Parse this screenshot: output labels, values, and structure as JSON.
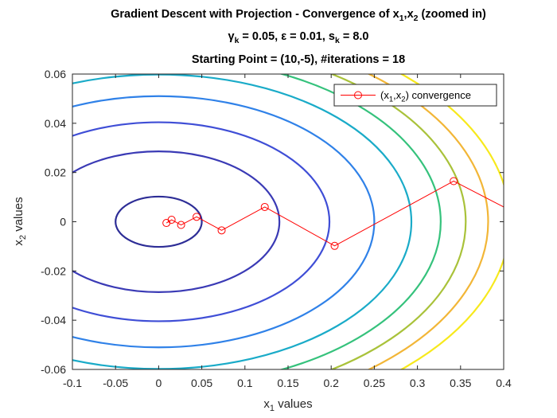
{
  "chart_data": {
    "type": "line",
    "title_lines": [
      {
        "text": "Gradient Descent with Projection - Convergence of x",
        "sub1": "1",
        "mid": ",x",
        "sub2": "2",
        "tail": " (zoomed in)"
      },
      {
        "p1": "γ",
        "s1": "k",
        "p2": " = 0.05,  ε = 0.01, s",
        "s2": "k",
        "p3": " = 8.0"
      },
      {
        "text": "Starting Point = (10,-5),  #iterations = 18"
      }
    ],
    "xlabel": {
      "main": "x",
      "sub": "1",
      "rest": " values"
    },
    "ylabel": {
      "main": "x",
      "sub": "2",
      "rest": " values"
    },
    "xlim": [
      -0.1,
      0.4
    ],
    "ylim": [
      -0.06,
      0.06
    ],
    "xticks": [
      -0.1,
      -0.05,
      0,
      0.05,
      0.1,
      0.15,
      0.2,
      0.25,
      0.3,
      0.35,
      0.4
    ],
    "xtick_labels": [
      "-0.1",
      "-0.05",
      "0",
      "0.05",
      "0.1",
      "0.15",
      "0.2",
      "0.25",
      "0.3",
      "0.35",
      "0.4"
    ],
    "yticks": [
      -0.06,
      -0.04,
      -0.02,
      0,
      0.02,
      0.04,
      0.06
    ],
    "ytick_labels": [
      "-0.06",
      "-0.04",
      "-0.02",
      "0",
      "0.02",
      "0.04",
      "0.06"
    ],
    "grid": false,
    "legend": {
      "position": "top-right",
      "pre": "(x",
      "s1": "1",
      "mid": ",x",
      "s2": "2",
      "post": ") convergence"
    },
    "series": [
      {
        "color": "#ff0000",
        "marker": "circle",
        "x": [
          0.4,
          0.342,
          0.204,
          0.123,
          0.073,
          0.044,
          0.026,
          0.015,
          0.009
        ],
        "y": [
          0.006,
          0.0165,
          -0.0098,
          0.006,
          -0.0035,
          0.002,
          -0.0013,
          0.0008,
          -0.0005
        ],
        "markers_shown": [
          false,
          true,
          true,
          true,
          true,
          true,
          true,
          true,
          true
        ]
      }
    ],
    "contours": [
      {
        "x_at_y0": -0.05,
        "color": "#2d2d96"
      },
      {
        "x_at_y0": 0.14,
        "color": "#3a3ab5"
      },
      {
        "x_at_y0": 0.198,
        "color": "#3f4ed6"
      },
      {
        "x_at_y0": 0.25,
        "color": "#2f81e8"
      },
      {
        "x_at_y0": 0.293,
        "color": "#1aabc8"
      },
      {
        "x_at_y0": 0.327,
        "color": "#35c27c"
      },
      {
        "x_at_y0": 0.356,
        "color": "#a9c23a"
      },
      {
        "x_at_y0": 0.382,
        "color": "#f2b637"
      },
      {
        "x_at_y0": 0.407,
        "color": "#f7e91c"
      }
    ]
  }
}
